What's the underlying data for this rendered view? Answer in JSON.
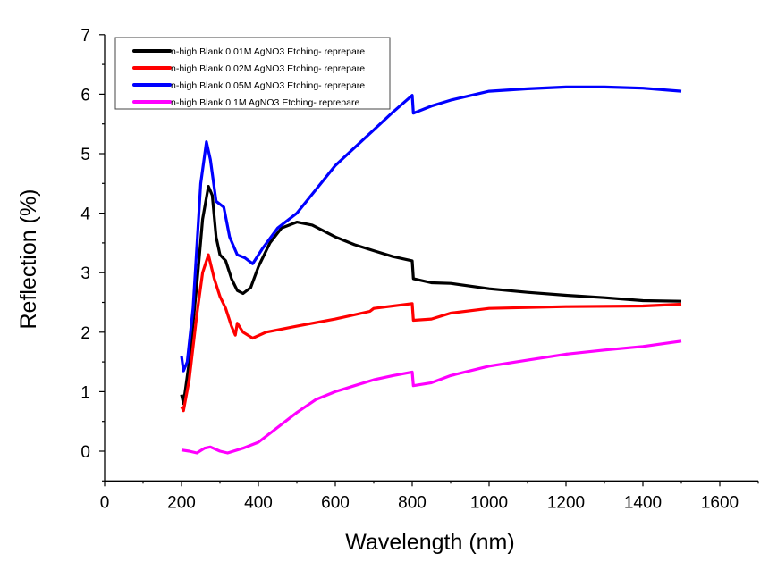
{
  "chart_data": {
    "type": "line",
    "title": "",
    "xlabel": "Wavelength (nm)",
    "ylabel": "Reflection (%)",
    "xlim": [
      0,
      1700
    ],
    "ylim": [
      -0.5,
      7
    ],
    "xticks": [
      0,
      200,
      400,
      600,
      800,
      1000,
      1200,
      1400,
      1600
    ],
    "yticks": [
      0,
      1,
      2,
      3,
      4,
      5,
      6,
      7
    ],
    "grid": false,
    "legend_position": "top-left",
    "series": [
      {
        "name": "n-high  Blank 0.01M AgNO3 Etching- reprepare",
        "color": "#000000",
        "x": [
          200,
          205,
          220,
          240,
          255,
          270,
          280,
          290,
          300,
          315,
          330,
          345,
          360,
          380,
          400,
          430,
          460,
          500,
          540,
          600,
          650,
          700,
          750,
          800,
          803,
          850,
          900,
          1000,
          1100,
          1200,
          1300,
          1400,
          1500
        ],
        "y": [
          0.95,
          0.8,
          1.5,
          2.8,
          3.9,
          4.45,
          4.3,
          3.6,
          3.3,
          3.2,
          2.9,
          2.7,
          2.65,
          2.75,
          3.1,
          3.5,
          3.75,
          3.85,
          3.8,
          3.6,
          3.47,
          3.37,
          3.27,
          3.2,
          2.9,
          2.83,
          2.82,
          2.73,
          2.67,
          2.62,
          2.58,
          2.53,
          2.52
        ]
      },
      {
        "name": "n-high  Blank 0.02M AgNO3 Etching- reprepare",
        "color": "#ff0000",
        "x": [
          200,
          205,
          220,
          240,
          255,
          270,
          285,
          300,
          315,
          330,
          340,
          345,
          360,
          385,
          420,
          500,
          600,
          690,
          700,
          800,
          803,
          850,
          900,
          1000,
          1200,
          1400,
          1500
        ],
        "y": [
          0.75,
          0.68,
          1.2,
          2.3,
          3.0,
          3.3,
          2.9,
          2.6,
          2.4,
          2.1,
          1.95,
          2.15,
          2.0,
          1.9,
          2.0,
          2.1,
          2.22,
          2.35,
          2.4,
          2.48,
          2.2,
          2.22,
          2.32,
          2.4,
          2.43,
          2.44,
          2.47
        ]
      },
      {
        "name": "n-high  Blank 0.05M AgNO3 Etching- reprepare",
        "color": "#0000ff",
        "x": [
          200,
          205,
          215,
          230,
          250,
          265,
          275,
          290,
          310,
          325,
          345,
          365,
          385,
          410,
          450,
          500,
          550,
          600,
          650,
          700,
          750,
          800,
          803,
          850,
          900,
          1000,
          1100,
          1200,
          1300,
          1400,
          1500
        ],
        "y": [
          1.6,
          1.35,
          1.5,
          2.4,
          4.5,
          5.2,
          4.9,
          4.2,
          4.1,
          3.6,
          3.3,
          3.25,
          3.15,
          3.4,
          3.75,
          4.0,
          4.4,
          4.8,
          5.1,
          5.4,
          5.7,
          5.98,
          5.68,
          5.8,
          5.9,
          6.05,
          6.09,
          6.12,
          6.12,
          6.1,
          6.05
        ]
      },
      {
        "name": "n-high  Blank 0.1M AgNO3 Etching- reprepare",
        "color": "#ff00ff",
        "x": [
          200,
          220,
          240,
          260,
          275,
          300,
          320,
          360,
          400,
          450,
          500,
          550,
          600,
          650,
          700,
          750,
          800,
          803,
          850,
          900,
          1000,
          1100,
          1200,
          1300,
          1400,
          1500
        ],
        "y": [
          0.02,
          0.0,
          -0.03,
          0.05,
          0.07,
          0.0,
          -0.03,
          0.05,
          0.15,
          0.4,
          0.65,
          0.87,
          1.0,
          1.1,
          1.2,
          1.27,
          1.33,
          1.1,
          1.15,
          1.27,
          1.43,
          1.53,
          1.63,
          1.7,
          1.76,
          1.85
        ]
      }
    ]
  }
}
